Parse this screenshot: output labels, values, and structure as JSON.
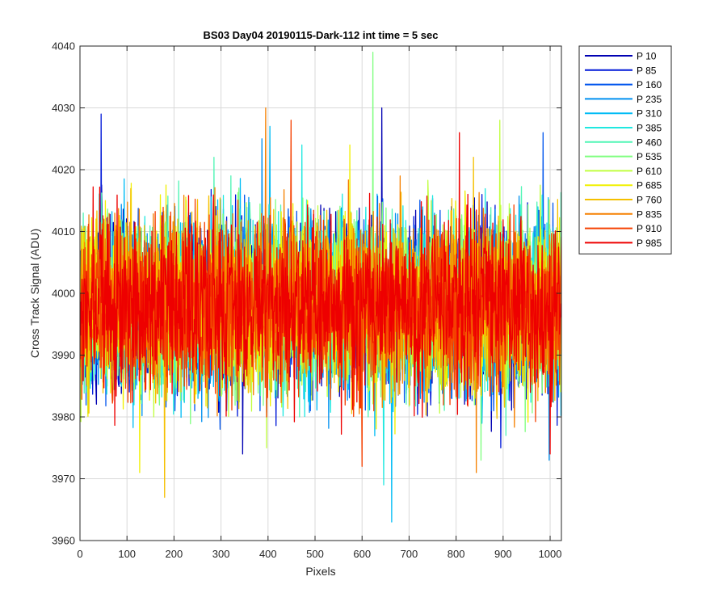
{
  "chart_data": {
    "type": "line",
    "title": "BS03 Day04 20190115-Dark-112 int time = 5 sec",
    "xlabel": "Pixels",
    "ylabel": "Cross Track Signal (ADU)",
    "xlim": [
      0,
      1024
    ],
    "ylim": [
      3960,
      4040
    ],
    "xticks": [
      "0",
      "100",
      "200",
      "300",
      "400",
      "500",
      "600",
      "700",
      "800",
      "900",
      "1000"
    ],
    "yticks": [
      "3960",
      "3970",
      "3980",
      "3990",
      "4000",
      "4010",
      "4020",
      "4030",
      "4040"
    ],
    "grid": true,
    "legend_placement": "outside-right-top",
    "n_pixels": 1024,
    "signal_mean": 3998,
    "series": [
      {
        "name": "P 10",
        "color": "#0000b3",
        "noise_sd": 7,
        "max": 4030,
        "min": 3974
      },
      {
        "name": "P 85",
        "color": "#0018d8",
        "noise_sd": 7,
        "max": 4029,
        "min": 3975
      },
      {
        "name": "P 160",
        "color": "#0055ee",
        "noise_sd": 7,
        "max": 4026,
        "min": 3978
      },
      {
        "name": "P 235",
        "color": "#0090f0",
        "noise_sd": 7,
        "max": 4025,
        "min": 3973
      },
      {
        "name": "P 310",
        "color": "#00bcf5",
        "noise_sd": 7,
        "max": 4027,
        "min": 3963
      },
      {
        "name": "P 385",
        "color": "#20e8e0",
        "noise_sd": 7,
        "max": 4024,
        "min": 3969
      },
      {
        "name": "P 460",
        "color": "#50f5b5",
        "noise_sd": 7,
        "max": 4022,
        "min": 3977
      },
      {
        "name": "P 535",
        "color": "#80ff80",
        "noise_sd": 7,
        "max": 4039,
        "min": 3973
      },
      {
        "name": "P 610",
        "color": "#c0ff40",
        "noise_sd": 7,
        "max": 4028,
        "min": 3975
      },
      {
        "name": "P 685",
        "color": "#f0f000",
        "noise_sd": 7,
        "max": 4024,
        "min": 3971
      },
      {
        "name": "P 760",
        "color": "#f5c000",
        "noise_sd": 7,
        "max": 4022,
        "min": 3967
      },
      {
        "name": "P 835",
        "color": "#f58000",
        "noise_sd": 7,
        "max": 4030,
        "min": 3971
      },
      {
        "name": "P 910",
        "color": "#f54000",
        "noise_sd": 7,
        "max": 4028,
        "min": 3972
      },
      {
        "name": "P 985",
        "color": "#ee0000",
        "noise_sd": 7,
        "max": 4026,
        "min": 3974
      }
    ]
  }
}
